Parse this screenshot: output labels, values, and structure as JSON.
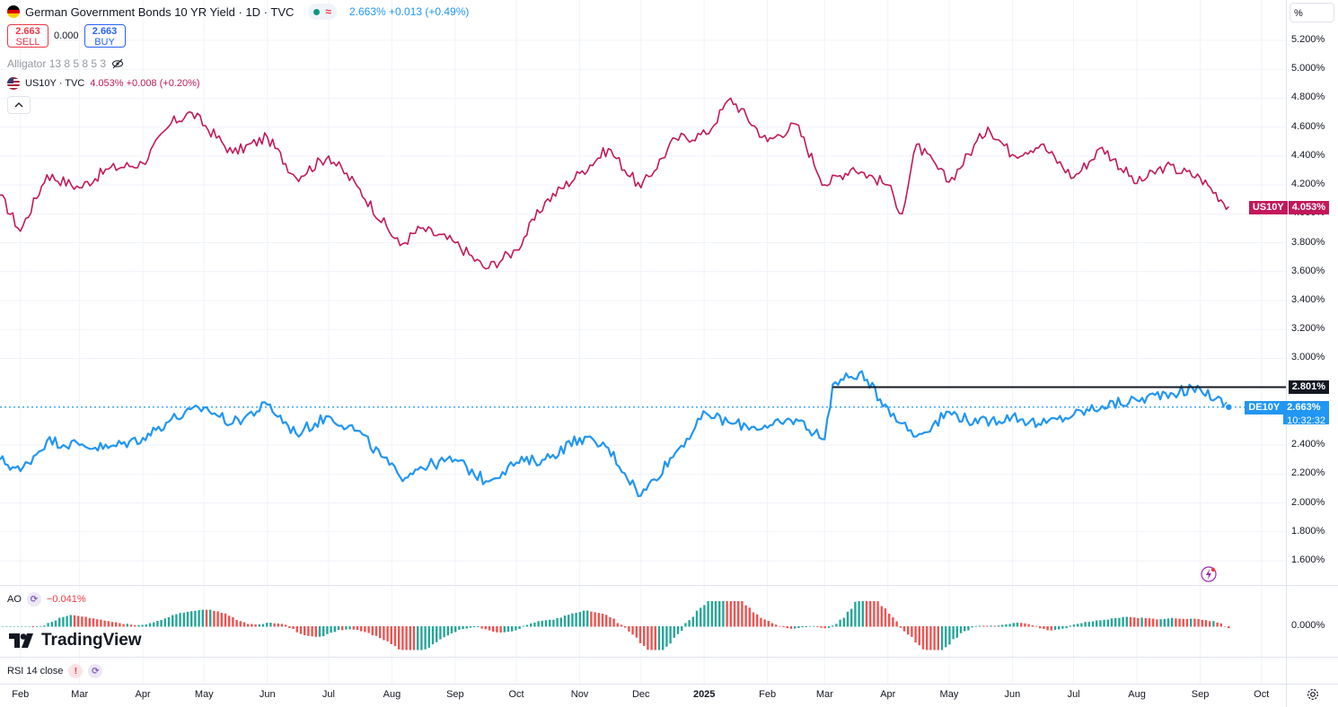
{
  "header": {
    "title": "German Government Bonds 10 YR Yield · 1D · TVC",
    "approx_symbol": "≈",
    "quote": "2.663% +0.013 (+0.49%)",
    "sell_value": "2.663",
    "sell_label": "SELL",
    "spread": "0.000",
    "buy_value": "2.663",
    "buy_label": "BUY",
    "indicator": "Alligator 13 8 5 8 5 3",
    "compare_symbol": "US10Y · TVC",
    "compare_quote": "4.053% +0.008 (+0.20%)",
    "scale_mode": "%"
  },
  "colors": {
    "us10y": "#c2185b",
    "de10y": "#2196f3",
    "ao_up": "#26a69a",
    "ao_down": "#ef5350",
    "grid": "#f0f3fa",
    "black_line": "#131722"
  },
  "price_scale": {
    "ticks": [
      "5.200%",
      "5.000%",
      "4.800%",
      "4.600%",
      "4.400%",
      "4.200%",
      "4.000%",
      "3.800%",
      "3.600%",
      "3.400%",
      "3.200%",
      "3.000%",
      "2.400%",
      "2.200%",
      "2.000%",
      "1.800%",
      "1.600%"
    ],
    "ao_tick": "0.000%"
  },
  "tags": {
    "us_name": "US10Y",
    "us_value": "4.053%",
    "hline_value": "2.801%",
    "de_name": "DE10Y",
    "de_value": "2.663%",
    "countdown": "10:32:32"
  },
  "time_axis": {
    "labels": [
      "Feb",
      "Mar",
      "Apr",
      "May",
      "Jun",
      "Jul",
      "Aug",
      "Sep",
      "Oct",
      "Nov",
      "Dec",
      "2025",
      "Feb",
      "Mar",
      "Apr",
      "May",
      "Jun",
      "Jul",
      "Aug",
      "Sep",
      "Oct"
    ]
  },
  "ao_pane": {
    "label": "AO",
    "value": "−0.041%"
  },
  "rsi_pane": {
    "label": "RSI 14 close",
    "warning": "!"
  },
  "branding": "TradingView",
  "chart_data": {
    "type": "line",
    "y_unit": "%",
    "ylim": [
      1.5,
      5.3
    ],
    "x_start": "2024-01-22",
    "x_end": "2025-10-13",
    "horizontal_line": 2.801,
    "series": [
      {
        "name": "US10Y",
        "x": [
          "2024-01-22",
          "2024-02-01",
          "2024-02-14",
          "2024-03-01",
          "2024-03-15",
          "2024-04-01",
          "2024-04-15",
          "2024-04-25",
          "2024-05-15",
          "2024-06-01",
          "2024-06-15",
          "2024-07-01",
          "2024-07-15",
          "2024-08-05",
          "2024-08-15",
          "2024-09-01",
          "2024-09-16",
          "2024-10-01",
          "2024-10-15",
          "2024-11-01",
          "2024-11-15",
          "2024-12-01",
          "2024-12-18",
          "2025-01-02",
          "2025-01-14",
          "2025-02-01",
          "2025-02-15",
          "2025-03-01",
          "2025-03-15",
          "2025-04-01",
          "2025-04-08",
          "2025-04-15",
          "2025-05-01",
          "2025-05-20",
          "2025-06-01",
          "2025-06-15",
          "2025-07-01",
          "2025-07-15",
          "2025-08-01",
          "2025-08-15",
          "2025-09-01",
          "2025-09-15"
        ],
        "values": [
          4.13,
          3.88,
          4.27,
          4.18,
          4.31,
          4.35,
          4.63,
          4.7,
          4.42,
          4.53,
          4.25,
          4.4,
          4.19,
          3.78,
          3.9,
          3.8,
          3.62,
          3.75,
          4.08,
          4.28,
          4.45,
          4.18,
          4.52,
          4.55,
          4.8,
          4.5,
          4.62,
          4.2,
          4.32,
          4.2,
          4.0,
          4.48,
          4.22,
          4.6,
          4.41,
          4.48,
          4.25,
          4.46,
          4.21,
          4.33,
          4.25,
          4.05
        ]
      },
      {
        "name": "DE10Y",
        "x": [
          "2024-01-22",
          "2024-02-01",
          "2024-02-14",
          "2024-03-01",
          "2024-03-15",
          "2024-04-01",
          "2024-04-15",
          "2024-05-01",
          "2024-05-15",
          "2024-06-01",
          "2024-06-15",
          "2024-07-01",
          "2024-07-15",
          "2024-08-05",
          "2024-08-15",
          "2024-09-01",
          "2024-09-16",
          "2024-10-01",
          "2024-10-15",
          "2024-11-01",
          "2024-11-15",
          "2024-12-01",
          "2024-12-18",
          "2025-01-02",
          "2025-01-14",
          "2025-02-01",
          "2025-02-15",
          "2025-03-01",
          "2025-03-05",
          "2025-03-18",
          "2025-04-01",
          "2025-04-08",
          "2025-04-15",
          "2025-05-01",
          "2025-05-15",
          "2025-06-01",
          "2025-06-15",
          "2025-07-01",
          "2025-07-15",
          "2025-08-01",
          "2025-08-15",
          "2025-09-01",
          "2025-09-15"
        ],
        "values": [
          2.3,
          2.22,
          2.43,
          2.4,
          2.38,
          2.45,
          2.58,
          2.66,
          2.55,
          2.68,
          2.48,
          2.6,
          2.5,
          2.18,
          2.25,
          2.3,
          2.15,
          2.28,
          2.3,
          2.45,
          2.38,
          2.05,
          2.35,
          2.62,
          2.55,
          2.52,
          2.58,
          2.44,
          2.82,
          2.9,
          2.66,
          2.55,
          2.46,
          2.63,
          2.55,
          2.6,
          2.54,
          2.61,
          2.67,
          2.71,
          2.76,
          2.79,
          2.663
        ]
      }
    ]
  }
}
